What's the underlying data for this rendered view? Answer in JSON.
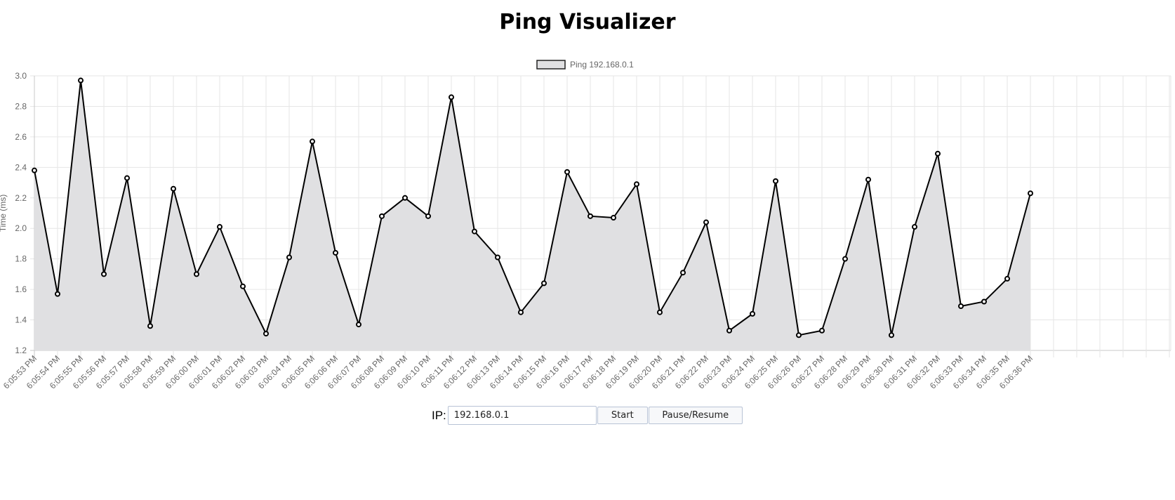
{
  "page": {
    "title": "Ping Visualizer"
  },
  "controls": {
    "ip_label": "IP:",
    "ip_value": "192.168.0.1",
    "start_label": "Start",
    "pause_label": "Pause/Resume"
  },
  "chart_data": {
    "type": "area",
    "title": "",
    "xlabel": "",
    "ylabel": "Time (ms)",
    "ylim": [
      1.2,
      3.0
    ],
    "y_ticks": [
      1.2,
      1.4,
      1.6,
      1.8,
      2.0,
      2.2,
      2.4,
      2.6,
      2.8,
      3.0
    ],
    "grid": true,
    "legend_position": "top-center",
    "x": [
      "6:05:53 PM",
      "6:05:54 PM",
      "6:05:55 PM",
      "6:05:56 PM",
      "6:05:57 PM",
      "6:05:58 PM",
      "6:05:59 PM",
      "6:06:00 PM",
      "6:06:01 PM",
      "6:06:02 PM",
      "6:06:03 PM",
      "6:06:04 PM",
      "6:06:05 PM",
      "6:06:06 PM",
      "6:06:07 PM",
      "6:06:08 PM",
      "6:06:09 PM",
      "6:06:10 PM",
      "6:06:11 PM",
      "6:06:12 PM",
      "6:06:13 PM",
      "6:06:14 PM",
      "6:06:15 PM",
      "6:06:16 PM",
      "6:06:17 PM",
      "6:06:18 PM",
      "6:06:19 PM",
      "6:06:20 PM",
      "6:06:21 PM",
      "6:06:22 PM",
      "6:06:23 PM",
      "6:06:24 PM",
      "6:06:25 PM",
      "6:06:26 PM",
      "6:06:27 PM",
      "6:06:28 PM",
      "6:06:29 PM",
      "6:06:30 PM",
      "6:06:31 PM",
      "6:06:32 PM",
      "6:06:33 PM",
      "6:06:34 PM",
      "6:06:35 PM",
      "6:06:36 PM"
    ],
    "empty_slots_after_data": 6,
    "series": [
      {
        "name": "Ping 192.168.0.1",
        "line_color": "#000000",
        "fill_color": "#e0e0e2",
        "values": [
          2.38,
          1.57,
          2.97,
          1.7,
          2.33,
          1.36,
          2.26,
          1.7,
          2.01,
          1.62,
          1.31,
          1.81,
          2.57,
          1.84,
          1.37,
          2.08,
          2.2,
          2.08,
          2.86,
          1.98,
          1.81,
          1.45,
          1.64,
          2.37,
          2.08,
          2.07,
          2.29,
          1.45,
          1.71,
          2.04,
          1.33,
          1.44,
          2.31,
          1.3,
          1.33,
          1.8,
          2.32,
          1.3,
          2.01,
          2.49,
          1.49,
          1.52,
          1.67,
          2.23
        ]
      }
    ]
  }
}
